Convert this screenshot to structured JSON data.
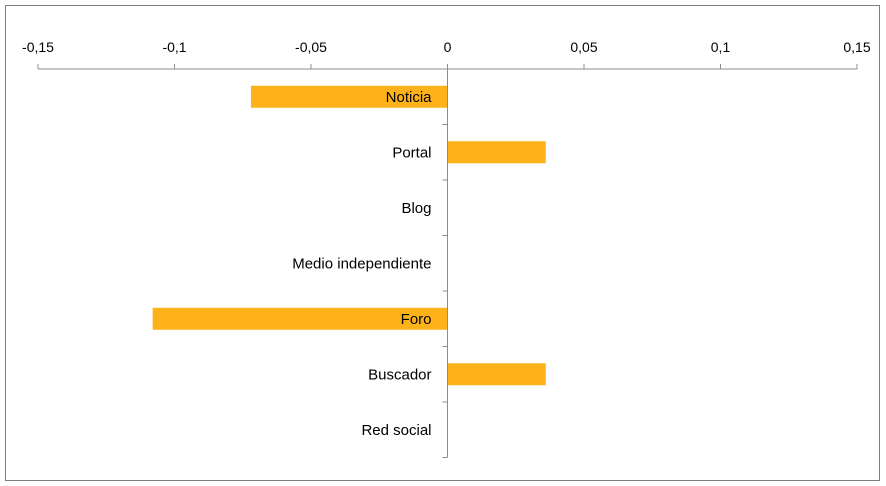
{
  "chart_data": {
    "type": "bar",
    "orientation": "horizontal",
    "categories": [
      "Noticia",
      "Portal",
      "Blog",
      "Medio independiente",
      "Foro",
      "Buscador",
      "Red social"
    ],
    "values": [
      -0.072,
      0.036,
      0,
      0,
      -0.108,
      0.036,
      0
    ],
    "xlim": [
      -0.15,
      0.15
    ],
    "xticks": [
      -0.15,
      -0.1,
      -0.05,
      0,
      0.05,
      0.1,
      0.15
    ],
    "xtick_labels": [
      "-0,15",
      "-0,1",
      "-0,05",
      "0",
      "0,05",
      "0,1",
      "0,15"
    ],
    "x_axis_position": "top",
    "bar_color": "#FDB21A",
    "grid": false,
    "legend": "none",
    "title": "",
    "xlabel": "",
    "ylabel": ""
  }
}
